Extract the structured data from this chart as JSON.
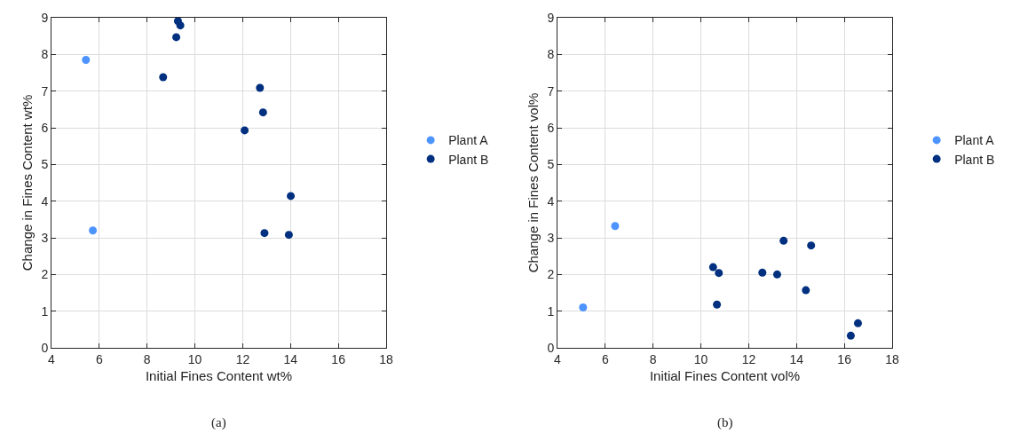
{
  "chart_data": [
    {
      "type": "scatter",
      "xlabel": "Initial Fines Content wt%",
      "ylabel": "Change in Fines Content wt%",
      "annotations": [
        "(a)"
      ],
      "xlim": [
        4,
        18
      ],
      "xticks": [
        4,
        6,
        8,
        10,
        12,
        14,
        16,
        18
      ],
      "ylim": [
        0,
        9
      ],
      "yticks": [
        0,
        1,
        2,
        3,
        4,
        5,
        6,
        7,
        8,
        9
      ],
      "grid": true,
      "legend": "right",
      "marker": "circle",
      "series": [
        {
          "name": "Plant A",
          "color": "#4d94ff",
          "x": [
            5.44,
            5.73
          ],
          "values": [
            7.85,
            3.2
          ]
        },
        {
          "name": "Plant B",
          "color": "#00307f",
          "x": [
            9.29,
            9.39,
            9.22,
            8.67,
            12.72,
            12.85,
            12.08,
            14.01,
            12.91,
            13.93
          ],
          "values": [
            8.91,
            8.79,
            8.47,
            7.38,
            7.09,
            6.42,
            5.93,
            4.14,
            3.13,
            3.08
          ]
        }
      ]
    },
    {
      "type": "scatter",
      "xlabel": "Initial Fines Content vol%",
      "ylabel": "Change in Fines Content vol%",
      "annotations": [
        "(b)"
      ],
      "xlim": [
        4,
        18
      ],
      "xticks": [
        4,
        6,
        8,
        10,
        12,
        14,
        16,
        18
      ],
      "ylim": [
        0,
        9
      ],
      "yticks": [
        0,
        1,
        2,
        3,
        4,
        5,
        6,
        7,
        8,
        9
      ],
      "grid": true,
      "legend": "right",
      "marker": "circle",
      "series": [
        {
          "name": "Plant A",
          "color": "#4d94ff",
          "x": [
            5.07,
            6.41
          ],
          "values": [
            1.1,
            3.32
          ]
        },
        {
          "name": "Plant B",
          "color": "#00307f",
          "x": [
            10.51,
            10.75,
            10.67,
            12.57,
            13.19,
            13.46,
            14.61,
            14.39,
            16.27,
            16.57
          ],
          "values": [
            2.2,
            2.04,
            1.18,
            2.05,
            2.0,
            2.92,
            2.79,
            1.57,
            0.33,
            0.67
          ]
        }
      ]
    }
  ]
}
